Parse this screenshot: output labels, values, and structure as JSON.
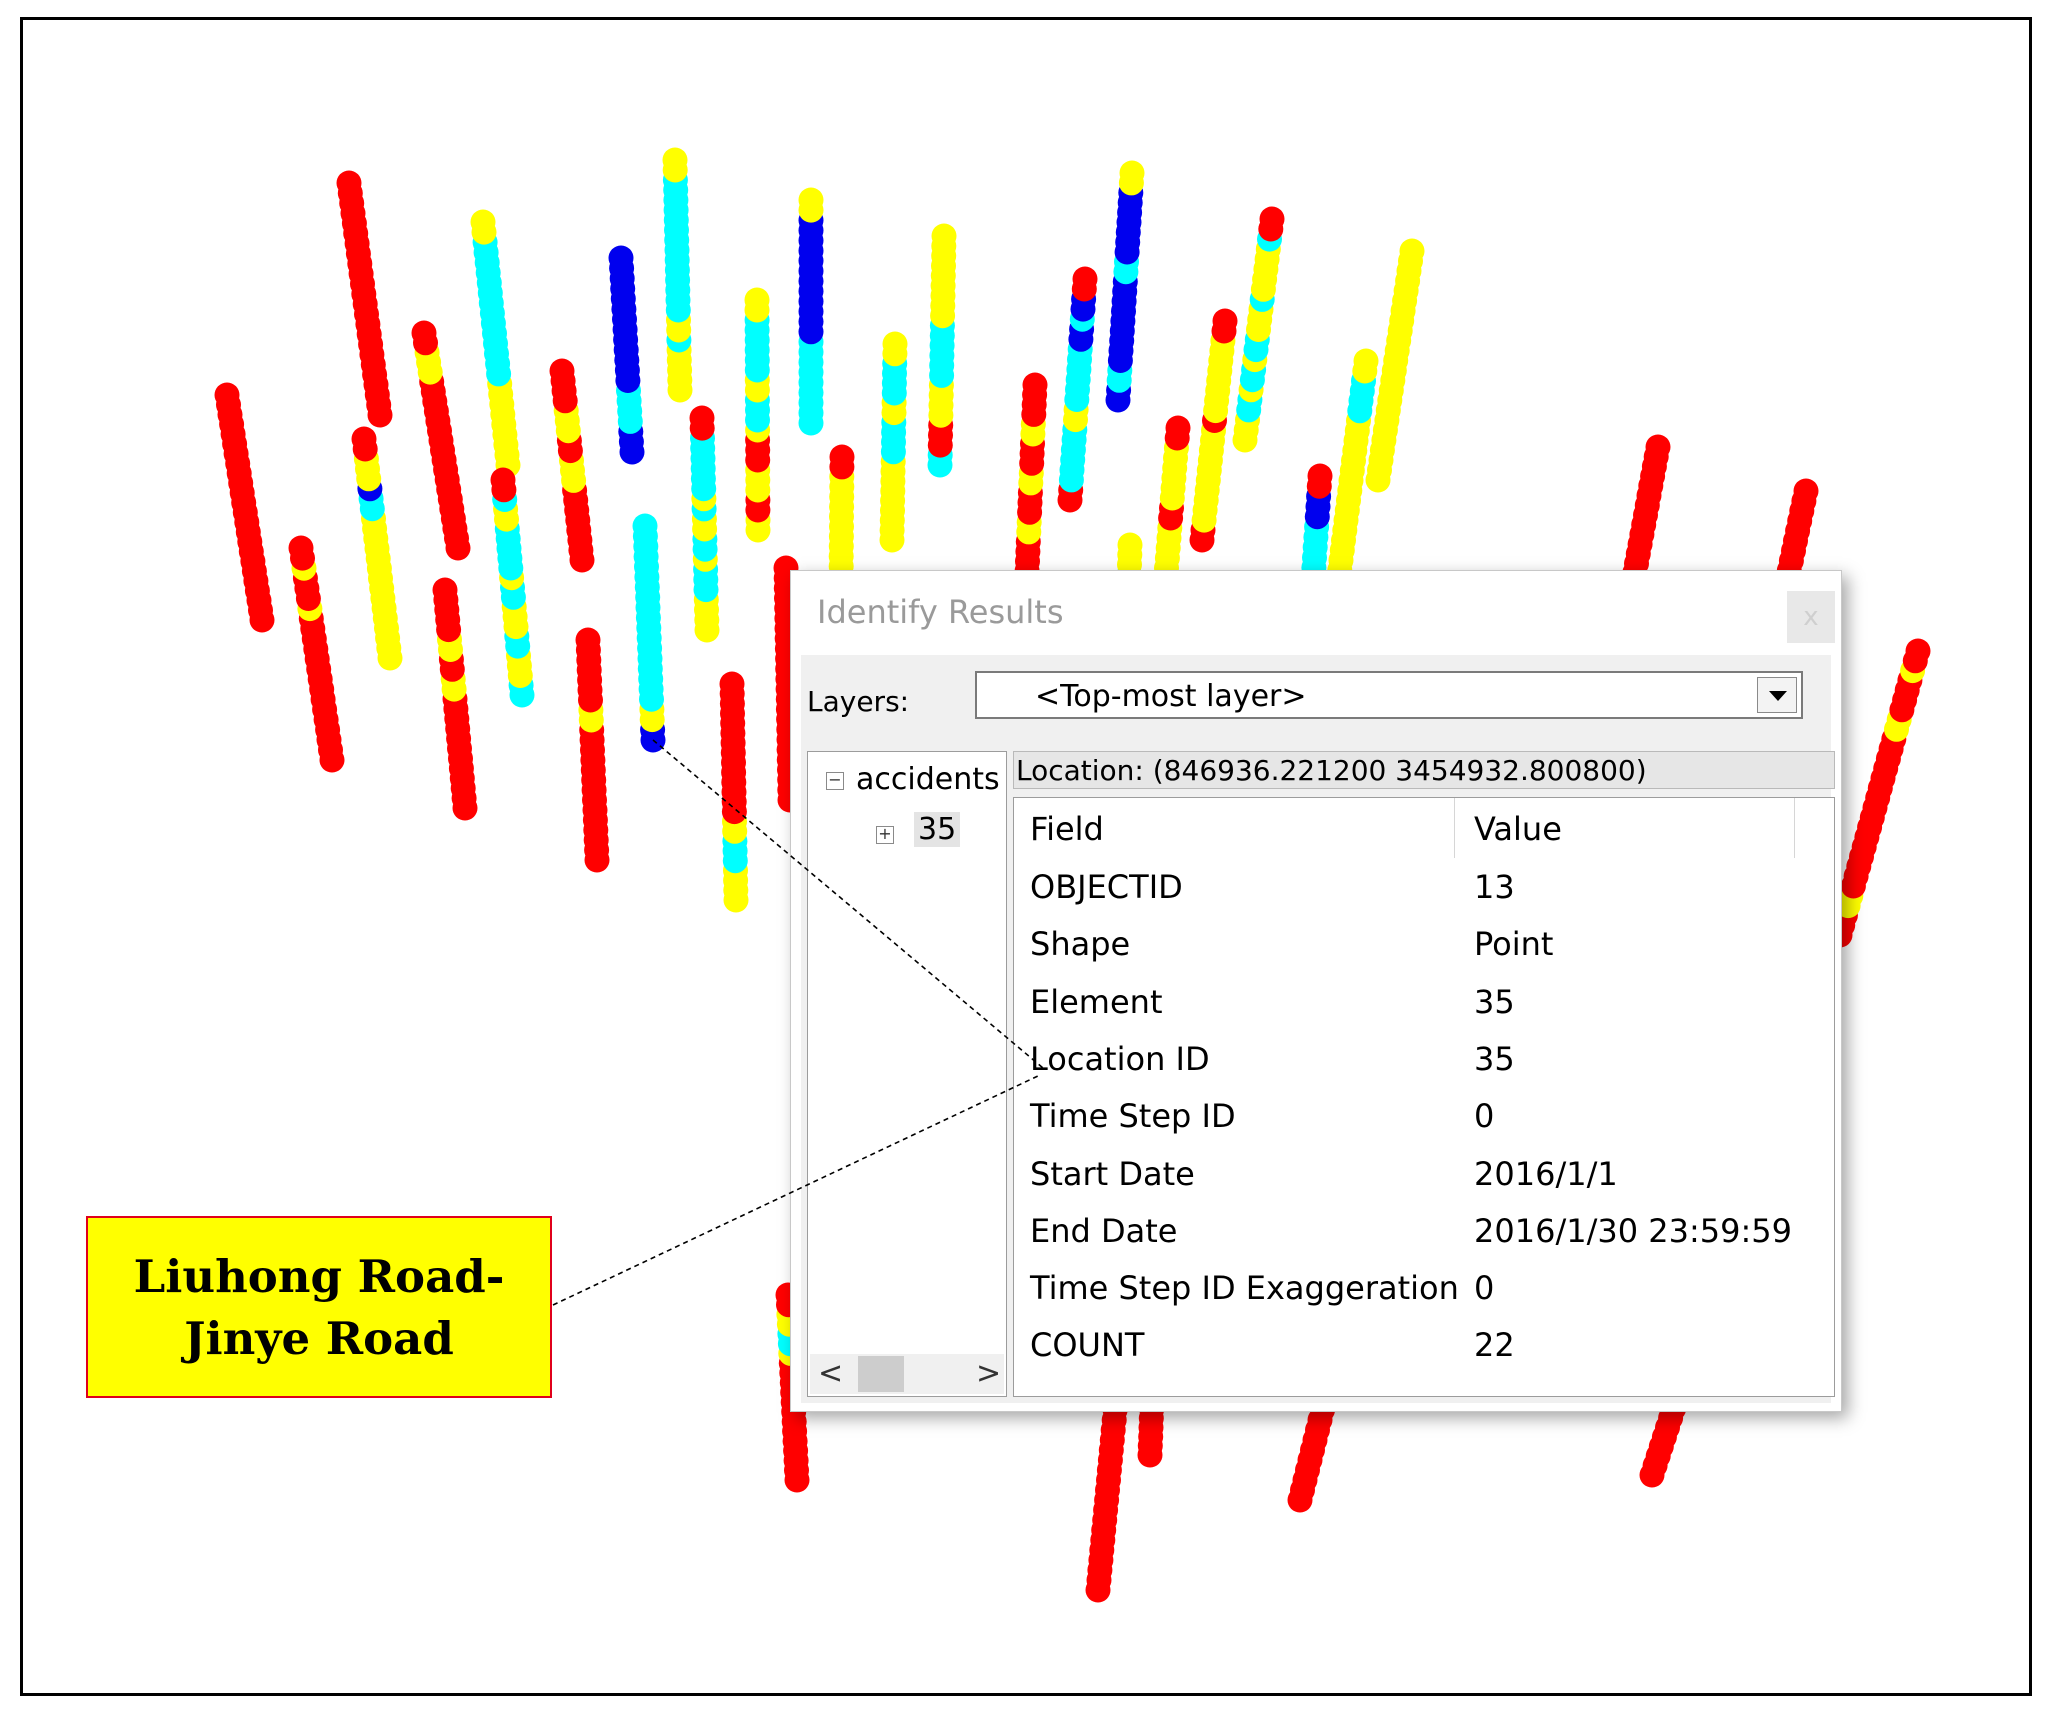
{
  "dialog": {
    "title": "Identify Results",
    "close_label": "x",
    "layers_label": "Layers:",
    "layers_selected": "<Top-most layer>",
    "tree": {
      "root_label": "accidents",
      "child_label": "35",
      "collapse_glyph": "−",
      "expand_glyph": "+"
    },
    "scroll_left": "<",
    "scroll_right": ">",
    "location_text": "Location: (846936.221200 3454932.800800)",
    "table": {
      "header_field": "Field",
      "header_value": "Value",
      "rows": [
        {
          "field": "OBJECTID",
          "value": "13"
        },
        {
          "field": "Shape",
          "value": "Point"
        },
        {
          "field": "Element",
          "value": "35"
        },
        {
          "field": "Location ID",
          "value": "35"
        },
        {
          "field": "Time Step ID",
          "value": "0"
        },
        {
          "field": "Start Date",
          "value": "2016/1/1"
        },
        {
          "field": "End Date",
          "value": "2016/1/30 23:59:59"
        },
        {
          "field": "Time Step ID Exaggeration",
          "value": "0"
        },
        {
          "field": "COUNT",
          "value": "22"
        }
      ]
    }
  },
  "callout": {
    "line1": "Liuhong Road-",
    "line2": "Jinye Road"
  },
  "colors": {
    "red": "#ff0000",
    "yellow": "#ffff00",
    "cyan": "#00ffff",
    "blue": "#0000ee"
  }
}
